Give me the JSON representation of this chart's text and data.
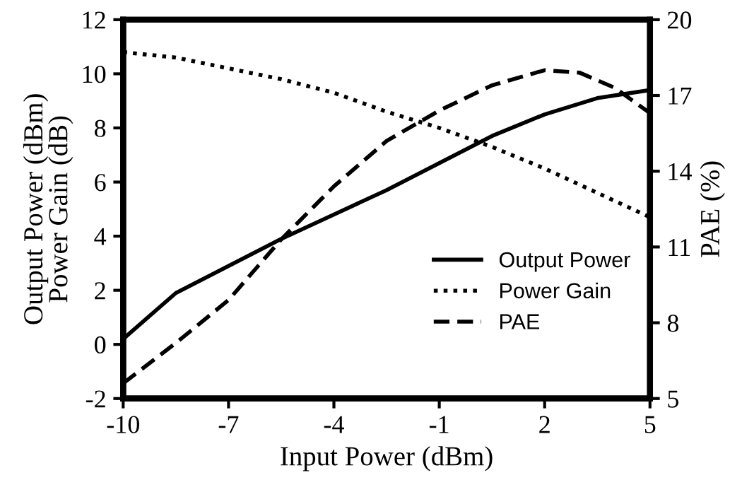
{
  "chart_data": {
    "type": "line",
    "xlabel": "Input Power (dBm)",
    "ylabel": "Output Power (dBm)\nPower Gain (dB)",
    "y2label": "PAE (%)",
    "x": [
      -10,
      -8.5,
      -7,
      -5.5,
      -4,
      -2.5,
      -1,
      0.5,
      2,
      3.5,
      5
    ],
    "series": [
      {
        "name": "Output Power",
        "color": "#000000",
        "line_style": "solid",
        "values": [
          0.2,
          1.9,
          2.9,
          3.9,
          4.8,
          5.7,
          6.7,
          7.7,
          8.5,
          9.1,
          9.4
        ]
      },
      {
        "name": "Power Gain",
        "color": "#000000",
        "line_style": "dotted",
        "values": [
          10.8,
          10.6,
          10.2,
          9.8,
          9.3,
          8.6,
          8.0,
          7.3,
          6.5,
          5.6,
          4.7
        ]
      },
      {
        "name": "PAE",
        "color": "#000000",
        "line_style": "dashed",
        "axis": "y2",
        "x": [
          -10,
          -8.5,
          -7,
          -5.5,
          -4,
          -2.5,
          -1,
          0.5,
          2,
          3,
          4,
          5
        ],
        "values": [
          5.6,
          7.2,
          8.9,
          11.3,
          13.4,
          15.2,
          16.4,
          17.4,
          18.0,
          17.9,
          17.3,
          16.3
        ]
      }
    ],
    "xlim": [
      -10,
      5
    ],
    "xticks": [
      -10,
      -7,
      -4,
      -1,
      2,
      5
    ],
    "ylim": [
      -2,
      12
    ],
    "yticks": [
      -2,
      0,
      2,
      4,
      6,
      8,
      10,
      12
    ],
    "y2lim": [
      5,
      20
    ],
    "y2ticks": [
      5,
      8,
      11,
      14,
      17,
      20
    ],
    "grid": false,
    "legend": "right",
    "marker": "none"
  }
}
